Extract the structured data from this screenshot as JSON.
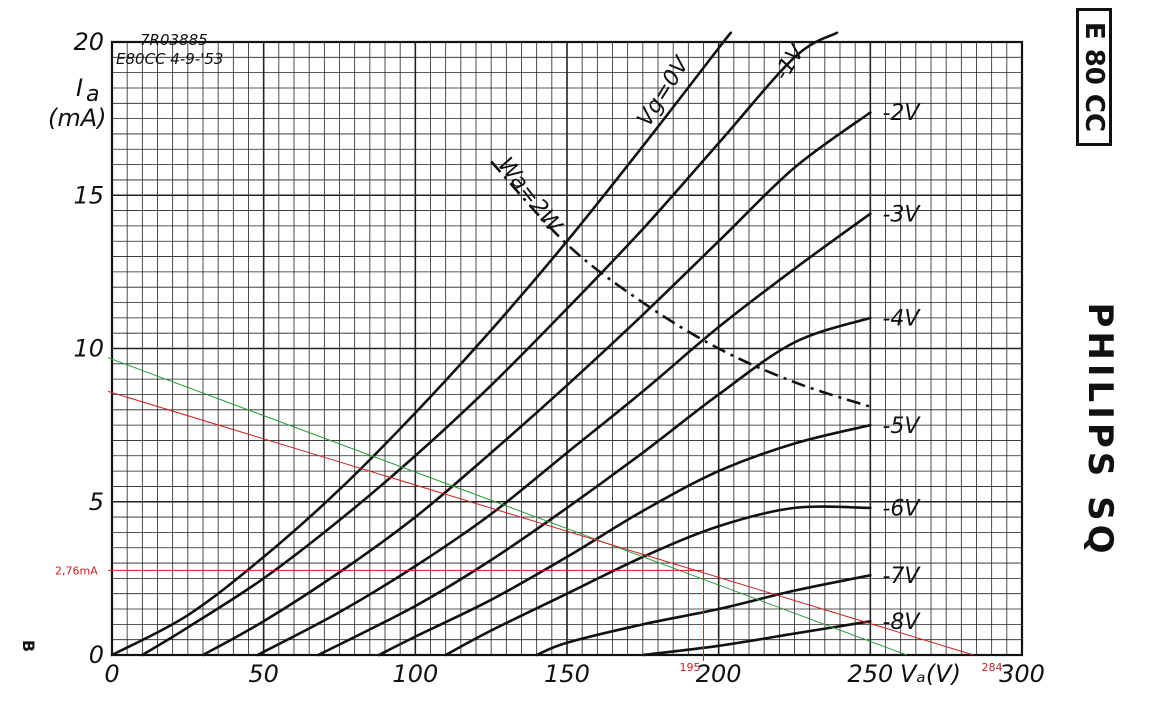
{
  "chart_data": {
    "type": "line",
    "header": {
      "code": "7R03885",
      "tube_date": "E80CC 4-9-'53"
    },
    "ylabel_symbol": "I",
    "ylabel_sub": "a",
    "ylabel_unit": "(mA)",
    "xlabel": "Vₐ(V)",
    "xlim": [
      0,
      300
    ],
    "ylim": [
      0,
      20
    ],
    "grid": true,
    "x_ticks": [
      "0",
      "50",
      "100",
      "150",
      "200",
      "250",
      "300"
    ],
    "y_ticks": [
      "0",
      "5",
      "10",
      "15",
      "20"
    ],
    "series": [
      {
        "name": "Vg=0V",
        "points": [
          [
            0,
            0
          ],
          [
            25,
            1.3
          ],
          [
            50,
            3.2
          ],
          [
            75,
            5.4
          ],
          [
            100,
            7.9
          ],
          [
            125,
            10.6
          ],
          [
            150,
            13.5
          ],
          [
            175,
            16.6
          ],
          [
            200,
            19.8
          ],
          [
            204,
            20.3
          ]
        ]
      },
      {
        "name": "-1V",
        "points": [
          [
            10,
            0
          ],
          [
            25,
            0.9
          ],
          [
            50,
            2.5
          ],
          [
            75,
            4.4
          ],
          [
            100,
            6.5
          ],
          [
            125,
            8.8
          ],
          [
            150,
            11.3
          ],
          [
            175,
            13.9
          ],
          [
            200,
            16.7
          ],
          [
            225,
            19.5
          ],
          [
            239,
            20.3
          ]
        ]
      },
      {
        "name": "-2V",
        "points": [
          [
            30,
            0
          ],
          [
            50,
            1.1
          ],
          [
            75,
            2.7
          ],
          [
            100,
            4.5
          ],
          [
            125,
            6.6
          ],
          [
            150,
            8.8
          ],
          [
            175,
            11.1
          ],
          [
            200,
            13.5
          ],
          [
            225,
            15.9
          ],
          [
            250,
            17.7
          ]
        ]
      },
      {
        "name": "-3V",
        "points": [
          [
            48,
            0
          ],
          [
            75,
            1.4
          ],
          [
            100,
            2.9
          ],
          [
            125,
            4.6
          ],
          [
            150,
            6.6
          ],
          [
            175,
            8.6
          ],
          [
            200,
            10.7
          ],
          [
            225,
            12.6
          ],
          [
            250,
            14.4
          ]
        ]
      },
      {
        "name": "-4V",
        "points": [
          [
            68,
            0
          ],
          [
            100,
            1.6
          ],
          [
            125,
            3.1
          ],
          [
            150,
            4.8
          ],
          [
            175,
            6.6
          ],
          [
            200,
            8.5
          ],
          [
            225,
            10.2
          ],
          [
            250,
            11.0
          ]
        ]
      },
      {
        "name": "-5V",
        "points": [
          [
            88,
            0
          ],
          [
            100,
            0.6
          ],
          [
            125,
            1.8
          ],
          [
            150,
            3.2
          ],
          [
            175,
            4.7
          ],
          [
            200,
            6.0
          ],
          [
            225,
            6.9
          ],
          [
            250,
            7.5
          ]
        ]
      },
      {
        "name": "-6V",
        "points": [
          [
            110,
            0
          ],
          [
            125,
            0.8
          ],
          [
            150,
            2.0
          ],
          [
            175,
            3.2
          ],
          [
            200,
            4.2
          ],
          [
            225,
            4.8
          ],
          [
            250,
            4.8
          ]
        ]
      },
      {
        "name": "-7V",
        "points": [
          [
            140,
            0
          ],
          [
            150,
            0.4
          ],
          [
            175,
            1.0
          ],
          [
            200,
            1.5
          ],
          [
            225,
            2.1
          ],
          [
            250,
            2.6
          ]
        ]
      },
      {
        "name": "-8V",
        "points": [
          [
            175,
            0
          ],
          [
            200,
            0.3
          ],
          [
            225,
            0.7
          ],
          [
            250,
            1.1
          ]
        ]
      }
    ],
    "dissipation_curve": {
      "name": "Wa=2W",
      "points": [
        [
          125,
          16.1
        ],
        [
          150,
          13.4
        ],
        [
          175,
          11.5
        ],
        [
          200,
          10.0
        ],
        [
          225,
          8.9
        ],
        [
          250,
          8.1
        ]
      ]
    },
    "load_lines": [
      {
        "color": "#2a9a3a",
        "points": [
          [
            0,
            9.7
          ],
          [
            262,
            0
          ]
        ]
      },
      {
        "color": "#d02020",
        "points": [
          [
            0,
            8.6
          ],
          [
            284,
            0
          ]
        ]
      }
    ],
    "operating_point": {
      "x": 195,
      "y": 2.76,
      "x_label": "195",
      "y_label": "2,76mA",
      "color": "#d02020"
    },
    "extra_x_label": "284",
    "brand_box_text": "E 80 CC",
    "brand_text": "PHILIPS SQ",
    "side_mark": "B"
  }
}
